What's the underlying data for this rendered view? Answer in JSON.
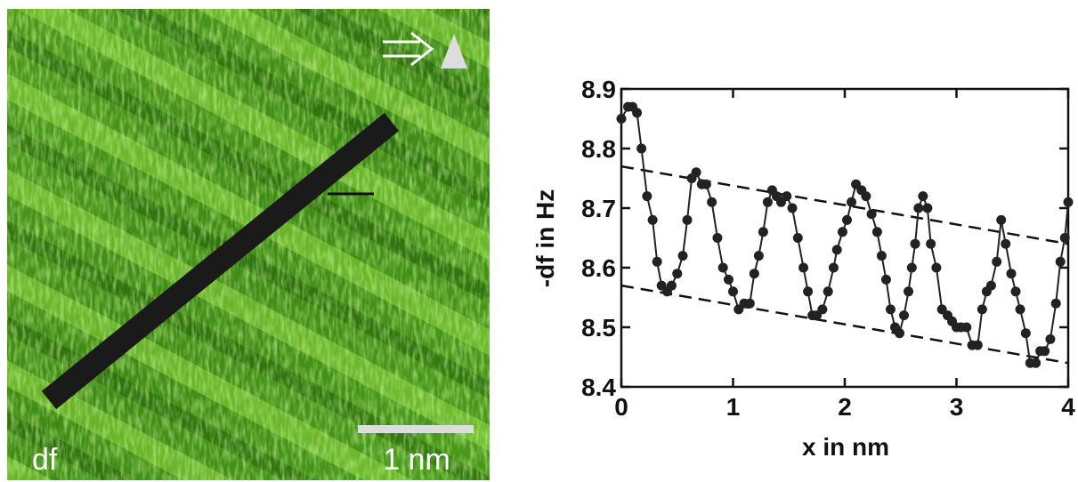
{
  "image": {
    "channel_label": "df",
    "scale_bar_label": "1 nm"
  },
  "chart_data": {
    "type": "line",
    "xlabel": "x in nm",
    "ylabel": "-df in Hz",
    "color": "#222222",
    "x": [
      0,
      0.06,
      0.1,
      0.14,
      0.18,
      0.23,
      0.28,
      0.32,
      0.36,
      0.41,
      0.45,
      0.5,
      0.55,
      0.59,
      0.63,
      0.67,
      0.72,
      0.76,
      0.81,
      0.86,
      0.91,
      0.96,
      1.0,
      1.05,
      1.1,
      1.15,
      1.19,
      1.23,
      1.27,
      1.31,
      1.35,
      1.39,
      1.43,
      1.48,
      1.53,
      1.58,
      1.63,
      1.67,
      1.71,
      1.75,
      1.8,
      1.85,
      1.9,
      1.93,
      1.98,
      2.02,
      2.06,
      2.1,
      2.15,
      2.19,
      2.24,
      2.29,
      2.33,
      2.37,
      2.41,
      2.45,
      2.49,
      2.53,
      2.57,
      2.6,
      2.63,
      2.66,
      2.7,
      2.74,
      2.77,
      2.82,
      2.87,
      2.92,
      2.96,
      3.0,
      3.04,
      3.09,
      3.14,
      3.19,
      3.23,
      3.27,
      3.31,
      3.36,
      3.4,
      3.44,
      3.49,
      3.53,
      3.57,
      3.62,
      3.66,
      3.71,
      3.75,
      3.79,
      3.84,
      3.89,
      3.93,
      3.97,
      4.0
    ],
    "values": [
      8.85,
      8.87,
      8.87,
      8.86,
      8.8,
      8.72,
      8.68,
      8.61,
      8.57,
      8.56,
      8.57,
      8.59,
      8.62,
      8.68,
      8.75,
      8.76,
      8.74,
      8.74,
      8.71,
      8.65,
      8.6,
      8.58,
      8.56,
      8.53,
      8.54,
      8.54,
      8.59,
      8.62,
      8.66,
      8.71,
      8.73,
      8.72,
      8.71,
      8.72,
      8.7,
      8.65,
      8.6,
      8.56,
      8.52,
      8.52,
      8.53,
      8.56,
      8.6,
      8.63,
      8.66,
      8.68,
      8.71,
      8.74,
      8.73,
      8.72,
      8.69,
      8.66,
      8.62,
      8.58,
      8.53,
      8.5,
      8.49,
      8.52,
      8.56,
      8.6,
      8.64,
      8.7,
      8.72,
      8.7,
      8.64,
      8.6,
      8.53,
      8.52,
      8.51,
      8.5,
      8.5,
      8.5,
      8.47,
      8.47,
      8.53,
      8.56,
      8.57,
      8.61,
      8.68,
      8.64,
      8.59,
      8.56,
      8.53,
      8.49,
      8.44,
      8.44,
      8.46,
      8.46,
      8.48,
      8.54,
      8.61,
      8.65,
      8.71
    ],
    "reference_lines": [
      {
        "x": [
          0,
          4
        ],
        "y": [
          8.77,
          8.64
        ]
      },
      {
        "x": [
          0,
          4
        ],
        "y": [
          8.57,
          8.44
        ]
      }
    ],
    "xlim": [
      0,
      4
    ],
    "xticks": [
      0,
      1,
      2,
      3,
      4
    ],
    "ylim": [
      8.4,
      8.9
    ],
    "yticks": [
      8.4,
      8.5,
      8.6,
      8.7,
      8.8,
      8.9
    ]
  }
}
